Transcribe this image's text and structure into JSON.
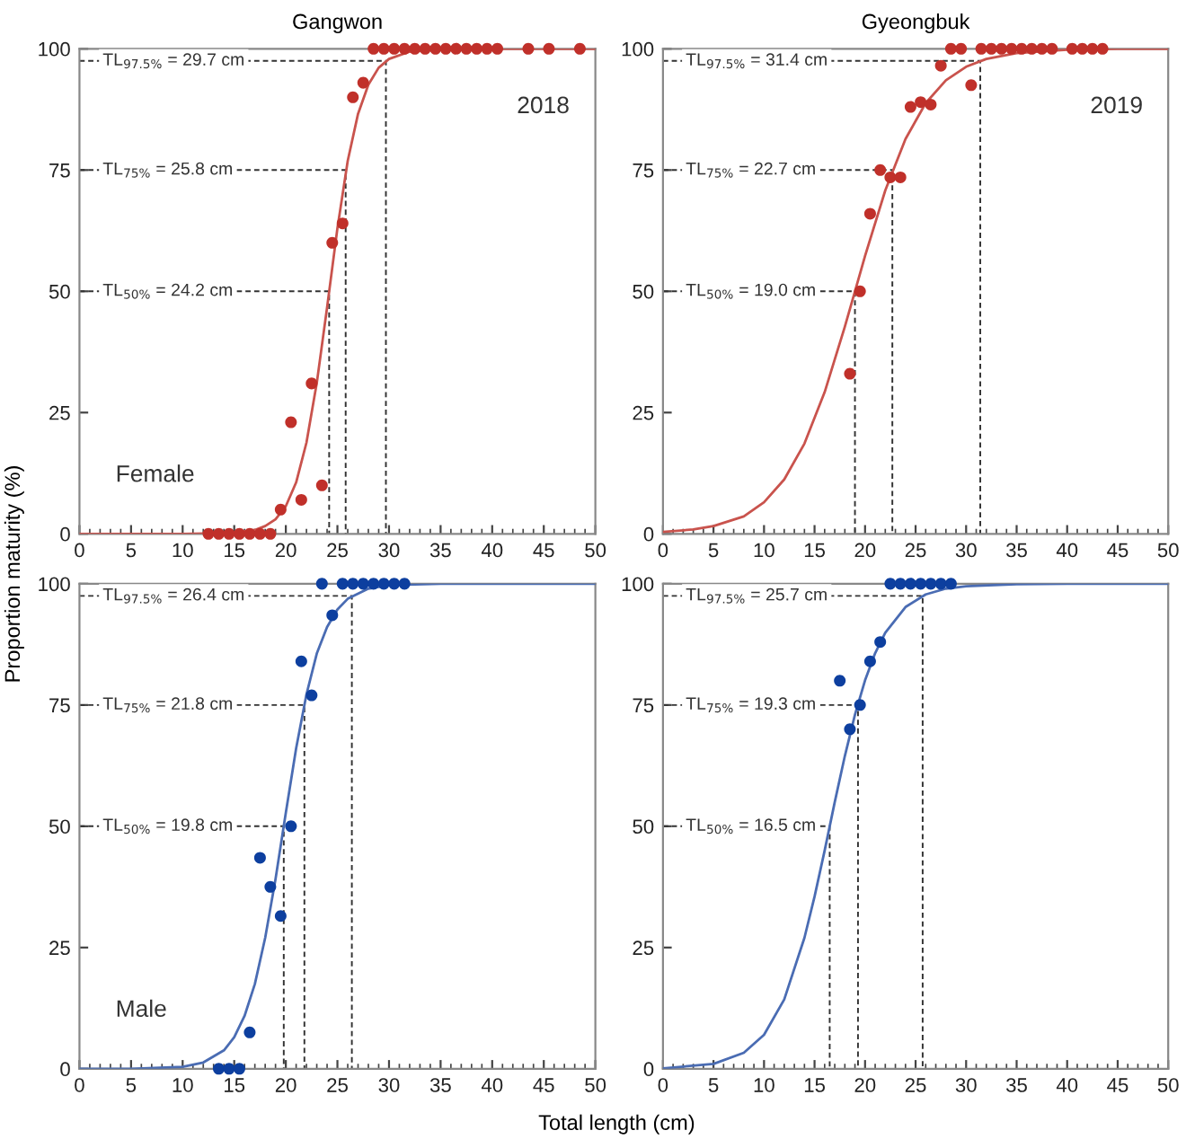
{
  "chart_data": [
    {
      "type": "scatter",
      "title": "Gangwon",
      "ylabel": "Proportion maturity (%)",
      "xlim": [
        0,
        50
      ],
      "ylim": [
        0,
        100
      ],
      "xticks": [
        0,
        5,
        10,
        15,
        20,
        25,
        30,
        35,
        40,
        45,
        50
      ],
      "yticks": [
        0,
        25,
        50,
        75,
        100
      ],
      "grid": false,
      "series": [
        {
          "marker": "circle",
          "color": "#c0302a",
          "x": [
            12.5,
            13.5,
            14.5,
            15.5,
            16.5,
            17.5,
            18.5,
            19.5,
            20.5,
            21.5,
            22.5,
            23.5,
            24.5,
            25.5,
            26.5,
            27.5,
            28.5,
            29.5,
            30.5,
            31.5,
            32.5,
            33.5,
            34.5,
            35.5,
            36.5,
            37.5,
            38.5,
            39.5,
            40.5,
            43.5,
            45.5,
            48.5
          ],
          "values": [
            0,
            0,
            0,
            0,
            0,
            0,
            0,
            5,
            23,
            7,
            31,
            10,
            60,
            64,
            90,
            93,
            100,
            100,
            100,
            100,
            100,
            100,
            100,
            100,
            100,
            100,
            100,
            100,
            100,
            100,
            100,
            100
          ]
        },
        {
          "type": "line",
          "marker": "none",
          "line_style": "solid",
          "color": "#c9534d",
          "x": [
            0,
            10,
            15,
            17,
            18,
            19,
            20,
            21,
            22,
            23,
            24,
            25,
            26,
            27,
            28,
            29,
            30,
            32,
            35,
            40,
            50
          ],
          "values": [
            0,
            0,
            0.2,
            0.8,
            1.6,
            3.0,
            5.7,
            10.6,
            18.8,
            31.1,
            46.7,
            63.0,
            76.9,
            86.6,
            92.6,
            96.1,
            97.9,
            99.4,
            99.9,
            100,
            100
          ]
        },
        {
          "type": "line",
          "marker": "none",
          "line_style": "dashed",
          "color": "#333333",
          "x": [
            0,
            29.7,
            29.7
          ],
          "values": [
            97.5,
            97.5,
            0
          ]
        },
        {
          "type": "line",
          "marker": "none",
          "line_style": "dashed",
          "color": "#333333",
          "x": [
            0,
            25.8,
            25.8
          ],
          "values": [
            75,
            75,
            0
          ]
        },
        {
          "type": "line",
          "marker": "none",
          "line_style": "dashed",
          "color": "#333333",
          "x": [
            0,
            24.2,
            24.2
          ],
          "values": [
            50,
            50,
            0
          ]
        }
      ],
      "annotations": [
        "2018",
        "Female",
        "TL$_{97.5%}$ = 29.7 cm",
        "TL$_{75%}$ = 25.8 cm",
        "TL$_{50%}$ = 24.2 cm"
      ]
    },
    {
      "type": "scatter",
      "title": "Gyeongbuk",
      "xlim": [
        0,
        50
      ],
      "ylim": [
        0,
        100
      ],
      "xticks": [
        0,
        5,
        10,
        15,
        20,
        25,
        30,
        35,
        40,
        45,
        50
      ],
      "yticks": [
        0,
        25,
        50,
        75,
        100
      ],
      "grid": false,
      "series": [
        {
          "marker": "circle",
          "color": "#c0302a",
          "x": [
            18.5,
            19.5,
            20.5,
            21.5,
            22.5,
            23.5,
            24.5,
            25.5,
            26.5,
            27.5,
            28.5,
            29.5,
            30.5,
            31.5,
            32.5,
            33.5,
            34.5,
            35.5,
            36.5,
            37.5,
            38.5,
            40.5,
            41.5,
            42.5,
            43.5
          ],
          "values": [
            33,
            50,
            66,
            75,
            73.5,
            73.5,
            88,
            89,
            88.5,
            96.5,
            100,
            100,
            92.5,
            100,
            100,
            100,
            100,
            100,
            100,
            100,
            100,
            100,
            100,
            100,
            100
          ]
        },
        {
          "type": "line",
          "marker": "none",
          "line_style": "solid",
          "color": "#c9534d",
          "x": [
            0,
            3,
            5,
            8,
            10,
            12,
            14,
            16,
            18,
            19,
            20,
            22,
            24,
            26,
            28,
            30,
            32,
            35,
            40,
            45,
            50
          ],
          "values": [
            0.4,
            0.9,
            1.6,
            3.6,
            6.5,
            11.2,
            18.6,
            29.2,
            42.7,
            50,
            57.3,
            70.8,
            81.4,
            88.8,
            93.5,
            96.3,
            97.9,
            99.1,
            99.8,
            100,
            100
          ]
        },
        {
          "type": "line",
          "marker": "none",
          "line_style": "dashed",
          "color": "#333333",
          "x": [
            0,
            31.4,
            31.4
          ],
          "values": [
            97.5,
            97.5,
            0
          ]
        },
        {
          "type": "line",
          "marker": "none",
          "line_style": "dashed",
          "color": "#333333",
          "x": [
            0,
            22.7,
            22.7
          ],
          "values": [
            75,
            75,
            0
          ]
        },
        {
          "type": "line",
          "marker": "none",
          "line_style": "dashed",
          "color": "#333333",
          "x": [
            0,
            19.0,
            19.0
          ],
          "values": [
            50,
            50,
            0
          ]
        }
      ],
      "annotations": [
        "2019",
        "TL$_{97.5%}$ = 31.4 cm",
        "TL$_{75%}$ = 22.7 cm",
        "TL$_{50%}$ = 19.0 cm"
      ]
    },
    {
      "type": "scatter",
      "xlabel": "Total length (cm)",
      "xlim": [
        0,
        50
      ],
      "ylim": [
        0,
        100
      ],
      "xticks": [
        0,
        5,
        10,
        15,
        20,
        25,
        30,
        35,
        40,
        45,
        50
      ],
      "yticks": [
        0,
        25,
        50,
        75,
        100
      ],
      "grid": false,
      "series": [
        {
          "marker": "circle",
          "color": "#0d3f9f",
          "x": [
            13.5,
            14.5,
            15.5,
            16.5,
            17.5,
            18.5,
            19.5,
            20.5,
            21.5,
            22.5,
            23.5,
            24.5,
            25.5,
            26.5,
            27.5,
            28.5,
            29.5,
            30.5,
            31.5
          ],
          "values": [
            0,
            0,
            0,
            7.5,
            43.5,
            37.5,
            31.5,
            50,
            84,
            77,
            100,
            93.5,
            100,
            100,
            100,
            100,
            100,
            100,
            100
          ]
        },
        {
          "type": "line",
          "marker": "none",
          "line_style": "solid",
          "color": "#4a6cb3",
          "x": [
            0,
            5,
            10,
            12,
            14,
            15,
            16,
            17,
            18,
            19,
            20,
            21,
            22,
            23,
            24,
            25,
            26,
            28,
            30,
            35,
            50
          ],
          "values": [
            0,
            0,
            0.4,
            1.3,
            3.8,
            6.5,
            10.9,
            17.5,
            27.0,
            39.1,
            52.8,
            66.1,
            77.2,
            85.6,
            91.1,
            94.7,
            96.9,
            99.0,
            99.7,
            100,
            100
          ]
        },
        {
          "type": "line",
          "marker": "none",
          "line_style": "dashed",
          "color": "#333333",
          "x": [
            0,
            26.4,
            26.4
          ],
          "values": [
            97.5,
            97.5,
            0
          ]
        },
        {
          "type": "line",
          "marker": "none",
          "line_style": "dashed",
          "color": "#333333",
          "x": [
            0,
            21.8,
            21.8
          ],
          "values": [
            75,
            75,
            0
          ]
        },
        {
          "type": "line",
          "marker": "none",
          "line_style": "dashed",
          "color": "#333333",
          "x": [
            0,
            19.8,
            19.8
          ],
          "values": [
            50,
            50,
            0
          ]
        }
      ],
      "annotations": [
        "Male",
        "TL$_{97.5%}$ = 26.4 cm",
        "TL$_{75%}$ = 21.8 cm",
        "TL$_{50%}$ = 19.8 cm"
      ]
    },
    {
      "type": "scatter",
      "xlim": [
        0,
        50
      ],
      "ylim": [
        0,
        100
      ],
      "xticks": [
        0,
        5,
        10,
        15,
        20,
        25,
        30,
        35,
        40,
        45,
        50
      ],
      "yticks": [
        0,
        25,
        50,
        75,
        100
      ],
      "grid": false,
      "series": [
        {
          "marker": "circle",
          "color": "#0d3f9f",
          "x": [
            17.5,
            18.5,
            19.5,
            20.5,
            21.5,
            22.5,
            23.5,
            24.5,
            25.5,
            26.5,
            27.5,
            28.5
          ],
          "values": [
            80,
            70,
            75,
            84,
            88,
            100,
            100,
            100,
            100,
            100,
            100,
            100
          ]
        },
        {
          "type": "line",
          "marker": "none",
          "line_style": "solid",
          "color": "#4a6cb3",
          "x": [
            0,
            5,
            8,
            10,
            12,
            14,
            15,
            16,
            17,
            18,
            19,
            20,
            21,
            22,
            24,
            26,
            28,
            30,
            35,
            40,
            50
          ],
          "values": [
            0.1,
            1.0,
            3.3,
            7.0,
            14.3,
            27.0,
            35.5,
            45.0,
            55.0,
            64.5,
            73.0,
            80.1,
            85.7,
            89.9,
            95.2,
            97.8,
            99.0,
            99.5,
            99.9,
            100,
            100
          ]
        },
        {
          "type": "line",
          "marker": "none",
          "line_style": "dashed",
          "color": "#333333",
          "x": [
            0,
            25.7,
            25.7
          ],
          "values": [
            97.5,
            97.5,
            0
          ]
        },
        {
          "type": "line",
          "marker": "none",
          "line_style": "dashed",
          "color": "#333333",
          "x": [
            0,
            19.3,
            19.3
          ],
          "values": [
            75,
            75,
            0
          ]
        },
        {
          "type": "line",
          "marker": "none",
          "line_style": "dashed",
          "color": "#333333",
          "x": [
            0,
            16.5,
            16.5
          ],
          "values": [
            50,
            50,
            0
          ]
        }
      ],
      "annotations": [
        "TL$_{97.5%}$ = 25.7 cm",
        "TL$_{75%}$ = 19.3 cm",
        "TL$_{50%}$ = 16.5 cm"
      ]
    }
  ]
}
